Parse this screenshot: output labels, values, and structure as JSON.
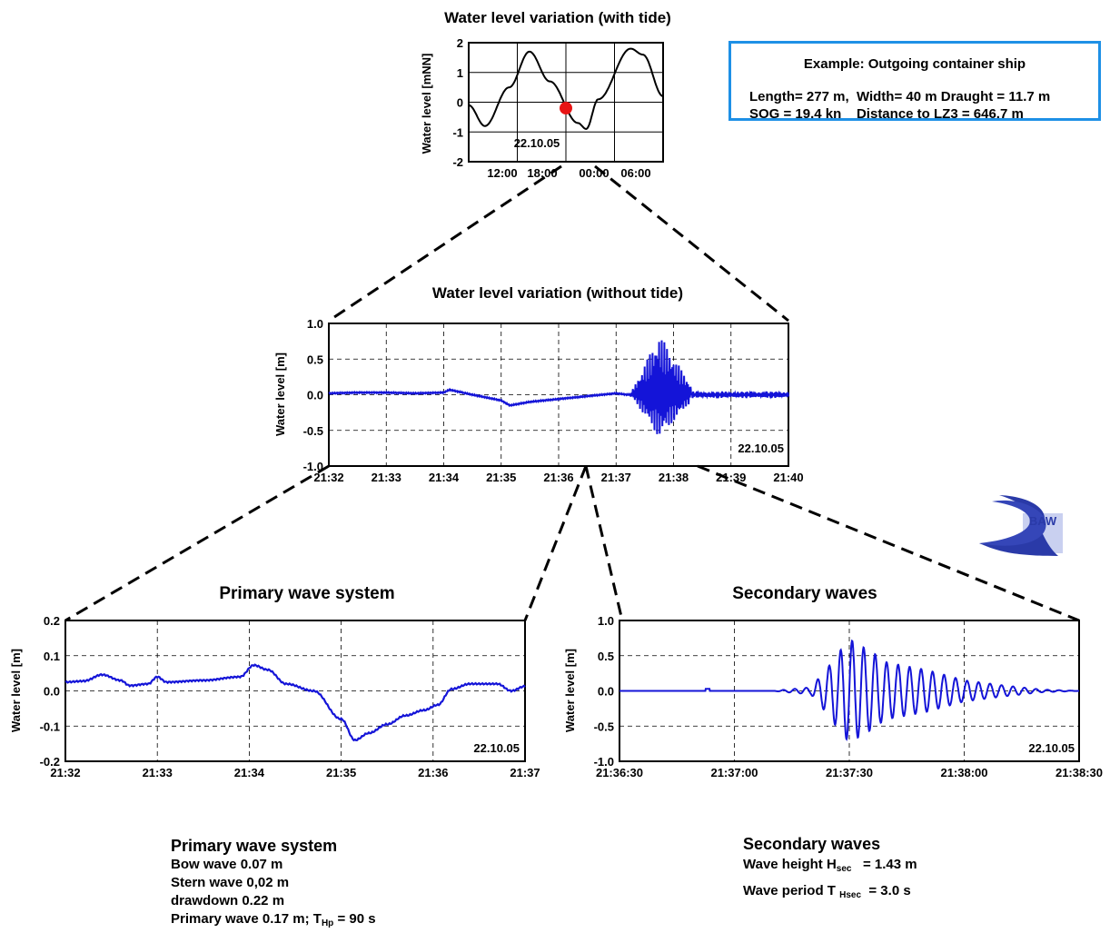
{
  "charts": {
    "tide": {
      "title": "Water level variation (with tide)",
      "ylabel": "Water level [mNN]",
      "yticks": [
        "2",
        "1",
        "0",
        "-1",
        "-2"
      ],
      "xticks": [
        "12:00",
        "18:00",
        "00:00",
        "06:00"
      ],
      "date_label": "22.10.05"
    },
    "overview": {
      "title": "Water level variation (without tide)",
      "ylabel": "Water level [m]",
      "yticks": [
        "1.0",
        "0.5",
        "0.0",
        "-0.5",
        "-1.0"
      ],
      "xticks": [
        "21:32",
        "21:33",
        "21:34",
        "21:35",
        "21:36",
        "21:37",
        "21:38",
        "21:39",
        "21:40"
      ],
      "date_label": "22.10.05"
    },
    "primary": {
      "title": "Primary wave system",
      "ylabel": "Water level [m]",
      "yticks": [
        "0.2",
        "0.1",
        "0.0",
        "-0.1",
        "-0.2"
      ],
      "xticks": [
        "21:32",
        "21:33",
        "21:34",
        "21:35",
        "21:36",
        "21:37"
      ],
      "date_label": "22.10.05"
    },
    "secondary": {
      "title": "Secondary waves",
      "ylabel": "Water level [m]",
      "yticks": [
        "1.0",
        "0.5",
        "0.0",
        "-0.5",
        "-1.0"
      ],
      "xticks": [
        "21:36:30",
        "21:37:00",
        "21:37:30",
        "21:38:00",
        "21:38:30"
      ],
      "date_label": "22.10.05"
    }
  },
  "info": {
    "title": "Example: Outgoing container ship",
    "line1": "Length= 277 m,  Width= 40 m Draught = 11.7 m",
    "line2": "SOG = 19.4 kn    Distance to LZ3 = 646.7 m"
  },
  "logo": {
    "text": "BAW"
  },
  "primary_summary": {
    "heading": "Primary wave system",
    "bow": "Bow wave  0.07 m",
    "stern": "Stern wave 0,02 m",
    "drawdown": "drawdown 0.22 m",
    "primary_prefix": "Primary wave  0.17 m; T",
    "primary_sub": "Hp",
    "primary_suffix": " = 90 s"
  },
  "secondary_summary": {
    "heading": "Secondary waves",
    "height_prefix": "Wave height  H",
    "height_sub": "sec",
    "height_suffix": "   = 1.43 m",
    "period_prefix": "Wave period T ",
    "period_sub": "Hsec",
    "period_suffix": "  = 3.0 s"
  },
  "colors": {
    "series": "#1414d8",
    "marker": "#e81414",
    "box_border": "#1e90e6"
  },
  "chart_data": [
    {
      "type": "line",
      "title": "Water level variation (with tide)",
      "ylabel": "Water level [mNN]",
      "x_unit": "hours relative to 00:00 22.10.05",
      "ylim": [
        -2,
        2
      ],
      "xlim": [
        -14.5,
        9.5
      ],
      "x": [
        -14.5,
        -12.5,
        -9.5,
        -7.0,
        -4.5,
        -1.0,
        0.0,
        1.5,
        5.5,
        7.0,
        9.5
      ],
      "values": [
        -0.1,
        -0.8,
        0.5,
        1.7,
        0.7,
        -0.7,
        -0.9,
        0.1,
        1.8,
        1.6,
        0.2
      ],
      "marker": {
        "x": -2.5,
        "y": -0.2
      },
      "grid": true
    },
    {
      "type": "line",
      "title": "Water level variation (without tide)",
      "ylabel": "Water level [m]",
      "x_unit": "minutes after 21:32",
      "ylim": [
        -1,
        1
      ],
      "xlim": [
        0,
        8
      ],
      "x": [
        0,
        0.5,
        1,
        1.5,
        2,
        2.1,
        2.5,
        3,
        3.15,
        3.5,
        4,
        4.5,
        5,
        5.2,
        5.3,
        5.5,
        5.7,
        6,
        6.5,
        7,
        7.5,
        8
      ],
      "values": [
        0.02,
        0.03,
        0.03,
        0.02,
        0.03,
        0.07,
        0.0,
        -0.08,
        -0.15,
        -0.1,
        -0.06,
        -0.02,
        0.02,
        0.0,
        0.01,
        0.0,
        0.0,
        0.0,
        0.0,
        0.0,
        0.0,
        0.0
      ],
      "burst": {
        "x_start": 5.25,
        "x_peak": 5.75,
        "x_end": 6.3,
        "max": 0.85,
        "min": -0.6
      },
      "grid": true
    },
    {
      "type": "line",
      "title": "Primary wave system",
      "ylabel": "Water level [m]",
      "x_unit": "minutes after 21:32",
      "ylim": [
        -0.2,
        0.2
      ],
      "xlim": [
        0,
        5
      ],
      "x": [
        0,
        0.2,
        0.4,
        0.6,
        0.7,
        0.9,
        1.0,
        1.1,
        1.5,
        1.9,
        2.05,
        2.2,
        2.4,
        2.7,
        3.0,
        3.15,
        3.3,
        3.5,
        3.7,
        3.9,
        4.05,
        4.2,
        4.4,
        4.7,
        4.85,
        5.0
      ],
      "values": [
        0.025,
        0.028,
        0.046,
        0.03,
        0.015,
        0.02,
        0.04,
        0.025,
        0.03,
        0.04,
        0.073,
        0.06,
        0.02,
        0.0,
        -0.08,
        -0.14,
        -0.12,
        -0.095,
        -0.07,
        -0.055,
        -0.04,
        0.005,
        0.02,
        0.02,
        0.0,
        0.013
      ],
      "grid": true
    },
    {
      "type": "line",
      "title": "Secondary waves",
      "ylabel": "Water level [m]",
      "x_unit": "seconds after 21:36:30",
      "ylim": [
        -1,
        1
      ],
      "xlim": [
        0,
        120
      ],
      "x": [
        0,
        20,
        40,
        50,
        60,
        70,
        80,
        90,
        100,
        110,
        120
      ],
      "values": [
        0,
        0,
        0,
        0.05,
        0.7,
        0.4,
        0.3,
        0.15,
        0.08,
        0.02,
        0
      ],
      "envelope_note": "oscillation amplitude envelope",
      "period_s": 3.0,
      "grid": true
    }
  ]
}
